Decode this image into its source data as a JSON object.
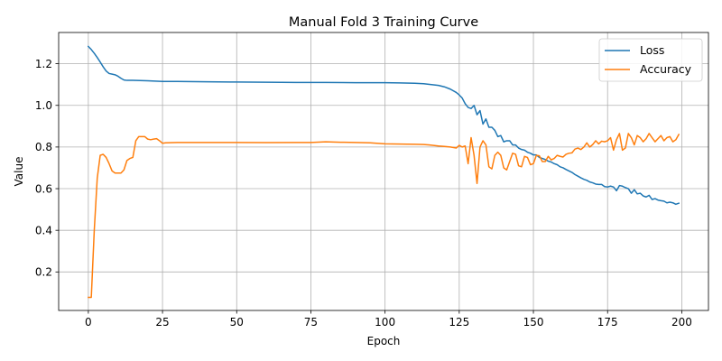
{
  "chart_data": {
    "type": "line",
    "title": "Manual Fold 3 Training Curve",
    "xlabel": "Epoch",
    "ylabel": "Value",
    "xlim": [
      -10,
      209
    ],
    "ylim": [
      0.015,
      1.35
    ],
    "x_ticks": [
      0,
      25,
      50,
      75,
      100,
      125,
      150,
      175,
      200
    ],
    "y_ticks": [
      0.2,
      0.4,
      0.6,
      0.8,
      1.0,
      1.2
    ],
    "grid": true,
    "legend_position": "top-right",
    "series": [
      {
        "name": "Loss",
        "color": "#1f77b4",
        "points": [
          [
            0,
            1.283
          ],
          [
            1,
            1.268
          ],
          [
            2,
            1.25
          ],
          [
            3,
            1.23
          ],
          [
            4,
            1.208
          ],
          [
            5,
            1.185
          ],
          [
            6,
            1.165
          ],
          [
            7,
            1.153
          ],
          [
            8,
            1.15
          ],
          [
            9,
            1.147
          ],
          [
            10,
            1.14
          ],
          [
            11,
            1.13
          ],
          [
            12,
            1.122
          ],
          [
            13,
            1.12
          ],
          [
            15,
            1.12
          ],
          [
            20,
            1.118
          ],
          [
            25,
            1.115
          ],
          [
            30,
            1.115
          ],
          [
            40,
            1.113
          ],
          [
            50,
            1.112
          ],
          [
            60,
            1.111
          ],
          [
            70,
            1.11
          ],
          [
            80,
            1.11
          ],
          [
            90,
            1.109
          ],
          [
            100,
            1.109
          ],
          [
            105,
            1.108
          ],
          [
            110,
            1.106
          ],
          [
            113,
            1.104
          ],
          [
            115,
            1.101
          ],
          [
            118,
            1.096
          ],
          [
            120,
            1.089
          ],
          [
            122,
            1.078
          ],
          [
            124,
            1.062
          ],
          [
            125,
            1.05
          ],
          [
            126,
            1.035
          ],
          [
            127,
            1.008
          ],
          [
            128,
            0.99
          ],
          [
            129,
            0.985
          ],
          [
            130,
            1.0
          ],
          [
            131,
            0.955
          ],
          [
            132,
            0.975
          ],
          [
            133,
            0.91
          ],
          [
            134,
            0.935
          ],
          [
            135,
            0.895
          ],
          [
            136,
            0.895
          ],
          [
            137,
            0.88
          ],
          [
            138,
            0.85
          ],
          [
            139,
            0.855
          ],
          [
            140,
            0.825
          ],
          [
            141,
            0.83
          ],
          [
            142,
            0.83
          ],
          [
            143,
            0.81
          ],
          [
            144,
            0.81
          ],
          [
            145,
            0.795
          ],
          [
            146,
            0.788
          ],
          [
            147,
            0.785
          ],
          [
            148,
            0.775
          ],
          [
            149,
            0.77
          ],
          [
            150,
            0.762
          ],
          [
            151,
            0.762
          ],
          [
            152,
            0.75
          ],
          [
            153,
            0.745
          ],
          [
            154,
            0.74
          ],
          [
            155,
            0.732
          ],
          [
            156,
            0.728
          ],
          [
            157,
            0.72
          ],
          [
            158,
            0.715
          ],
          [
            159,
            0.705
          ],
          [
            160,
            0.7
          ],
          [
            161,
            0.692
          ],
          [
            162,
            0.685
          ],
          [
            163,
            0.678
          ],
          [
            164,
            0.668
          ],
          [
            165,
            0.66
          ],
          [
            166,
            0.652
          ],
          [
            167,
            0.645
          ],
          [
            168,
            0.64
          ],
          [
            169,
            0.632
          ],
          [
            170,
            0.628
          ],
          [
            171,
            0.622
          ],
          [
            172,
            0.62
          ],
          [
            173,
            0.62
          ],
          [
            174,
            0.61
          ],
          [
            175,
            0.608
          ],
          [
            176,
            0.612
          ],
          [
            177,
            0.608
          ],
          [
            178,
            0.59
          ],
          [
            179,
            0.615
          ],
          [
            180,
            0.612
          ],
          [
            181,
            0.605
          ],
          [
            182,
            0.6
          ],
          [
            183,
            0.578
          ],
          [
            184,
            0.595
          ],
          [
            185,
            0.575
          ],
          [
            186,
            0.578
          ],
          [
            187,
            0.565
          ],
          [
            188,
            0.56
          ],
          [
            189,
            0.568
          ],
          [
            190,
            0.548
          ],
          [
            191,
            0.552
          ],
          [
            192,
            0.545
          ],
          [
            193,
            0.542
          ],
          [
            194,
            0.54
          ],
          [
            195,
            0.532
          ],
          [
            196,
            0.535
          ],
          [
            197,
            0.532
          ],
          [
            198,
            0.525
          ],
          [
            199,
            0.53
          ]
        ]
      },
      {
        "name": "Accuracy",
        "color": "#ff7f0e",
        "points": [
          [
            0,
            0.078
          ],
          [
            1,
            0.078
          ],
          [
            2,
            0.4
          ],
          [
            3,
            0.65
          ],
          [
            4,
            0.76
          ],
          [
            5,
            0.765
          ],
          [
            6,
            0.75
          ],
          [
            7,
            0.72
          ],
          [
            8,
            0.685
          ],
          [
            9,
            0.675
          ],
          [
            10,
            0.675
          ],
          [
            11,
            0.675
          ],
          [
            12,
            0.69
          ],
          [
            13,
            0.735
          ],
          [
            14,
            0.745
          ],
          [
            15,
            0.75
          ],
          [
            16,
            0.83
          ],
          [
            17,
            0.85
          ],
          [
            18,
            0.85
          ],
          [
            19,
            0.85
          ],
          [
            20,
            0.838
          ],
          [
            21,
            0.835
          ],
          [
            22,
            0.838
          ],
          [
            23,
            0.84
          ],
          [
            24,
            0.83
          ],
          [
            25,
            0.818
          ],
          [
            26,
            0.82
          ],
          [
            30,
            0.822
          ],
          [
            40,
            0.822
          ],
          [
            50,
            0.822
          ],
          [
            60,
            0.821
          ],
          [
            70,
            0.822
          ],
          [
            75,
            0.822
          ],
          [
            80,
            0.825
          ],
          [
            85,
            0.823
          ],
          [
            90,
            0.822
          ],
          [
            95,
            0.82
          ],
          [
            100,
            0.815
          ],
          [
            105,
            0.814
          ],
          [
            110,
            0.813
          ],
          [
            113,
            0.812
          ],
          [
            115,
            0.81
          ],
          [
            118,
            0.805
          ],
          [
            120,
            0.803
          ],
          [
            122,
            0.8
          ],
          [
            124,
            0.795
          ],
          [
            125,
            0.808
          ],
          [
            126,
            0.8
          ],
          [
            127,
            0.805
          ],
          [
            128,
            0.72
          ],
          [
            129,
            0.845
          ],
          [
            130,
            0.76
          ],
          [
            131,
            0.625
          ],
          [
            132,
            0.8
          ],
          [
            133,
            0.83
          ],
          [
            134,
            0.81
          ],
          [
            135,
            0.705
          ],
          [
            136,
            0.695
          ],
          [
            137,
            0.76
          ],
          [
            138,
            0.775
          ],
          [
            139,
            0.76
          ],
          [
            140,
            0.7
          ],
          [
            141,
            0.69
          ],
          [
            142,
            0.73
          ],
          [
            143,
            0.77
          ],
          [
            144,
            0.765
          ],
          [
            145,
            0.71
          ],
          [
            146,
            0.705
          ],
          [
            147,
            0.755
          ],
          [
            148,
            0.75
          ],
          [
            149,
            0.715
          ],
          [
            150,
            0.72
          ],
          [
            151,
            0.76
          ],
          [
            152,
            0.758
          ],
          [
            153,
            0.73
          ],
          [
            154,
            0.73
          ],
          [
            155,
            0.755
          ],
          [
            156,
            0.738
          ],
          [
            157,
            0.745
          ],
          [
            158,
            0.76
          ],
          [
            159,
            0.755
          ],
          [
            160,
            0.752
          ],
          [
            161,
            0.765
          ],
          [
            162,
            0.77
          ],
          [
            163,
            0.772
          ],
          [
            164,
            0.79
          ],
          [
            165,
            0.795
          ],
          [
            166,
            0.788
          ],
          [
            167,
            0.8
          ],
          [
            168,
            0.82
          ],
          [
            169,
            0.8
          ],
          [
            170,
            0.812
          ],
          [
            171,
            0.83
          ],
          [
            172,
            0.815
          ],
          [
            173,
            0.828
          ],
          [
            174,
            0.825
          ],
          [
            175,
            0.83
          ],
          [
            176,
            0.845
          ],
          [
            177,
            0.785
          ],
          [
            178,
            0.835
          ],
          [
            179,
            0.865
          ],
          [
            180,
            0.785
          ],
          [
            181,
            0.795
          ],
          [
            182,
            0.865
          ],
          [
            183,
            0.845
          ],
          [
            184,
            0.81
          ],
          [
            185,
            0.855
          ],
          [
            186,
            0.845
          ],
          [
            187,
            0.825
          ],
          [
            188,
            0.84
          ],
          [
            189,
            0.865
          ],
          [
            190,
            0.845
          ],
          [
            191,
            0.825
          ],
          [
            192,
            0.84
          ],
          [
            193,
            0.855
          ],
          [
            194,
            0.83
          ],
          [
            195,
            0.845
          ],
          [
            196,
            0.85
          ],
          [
            197,
            0.825
          ],
          [
            198,
            0.835
          ],
          [
            199,
            0.86
          ]
        ]
      }
    ]
  }
}
